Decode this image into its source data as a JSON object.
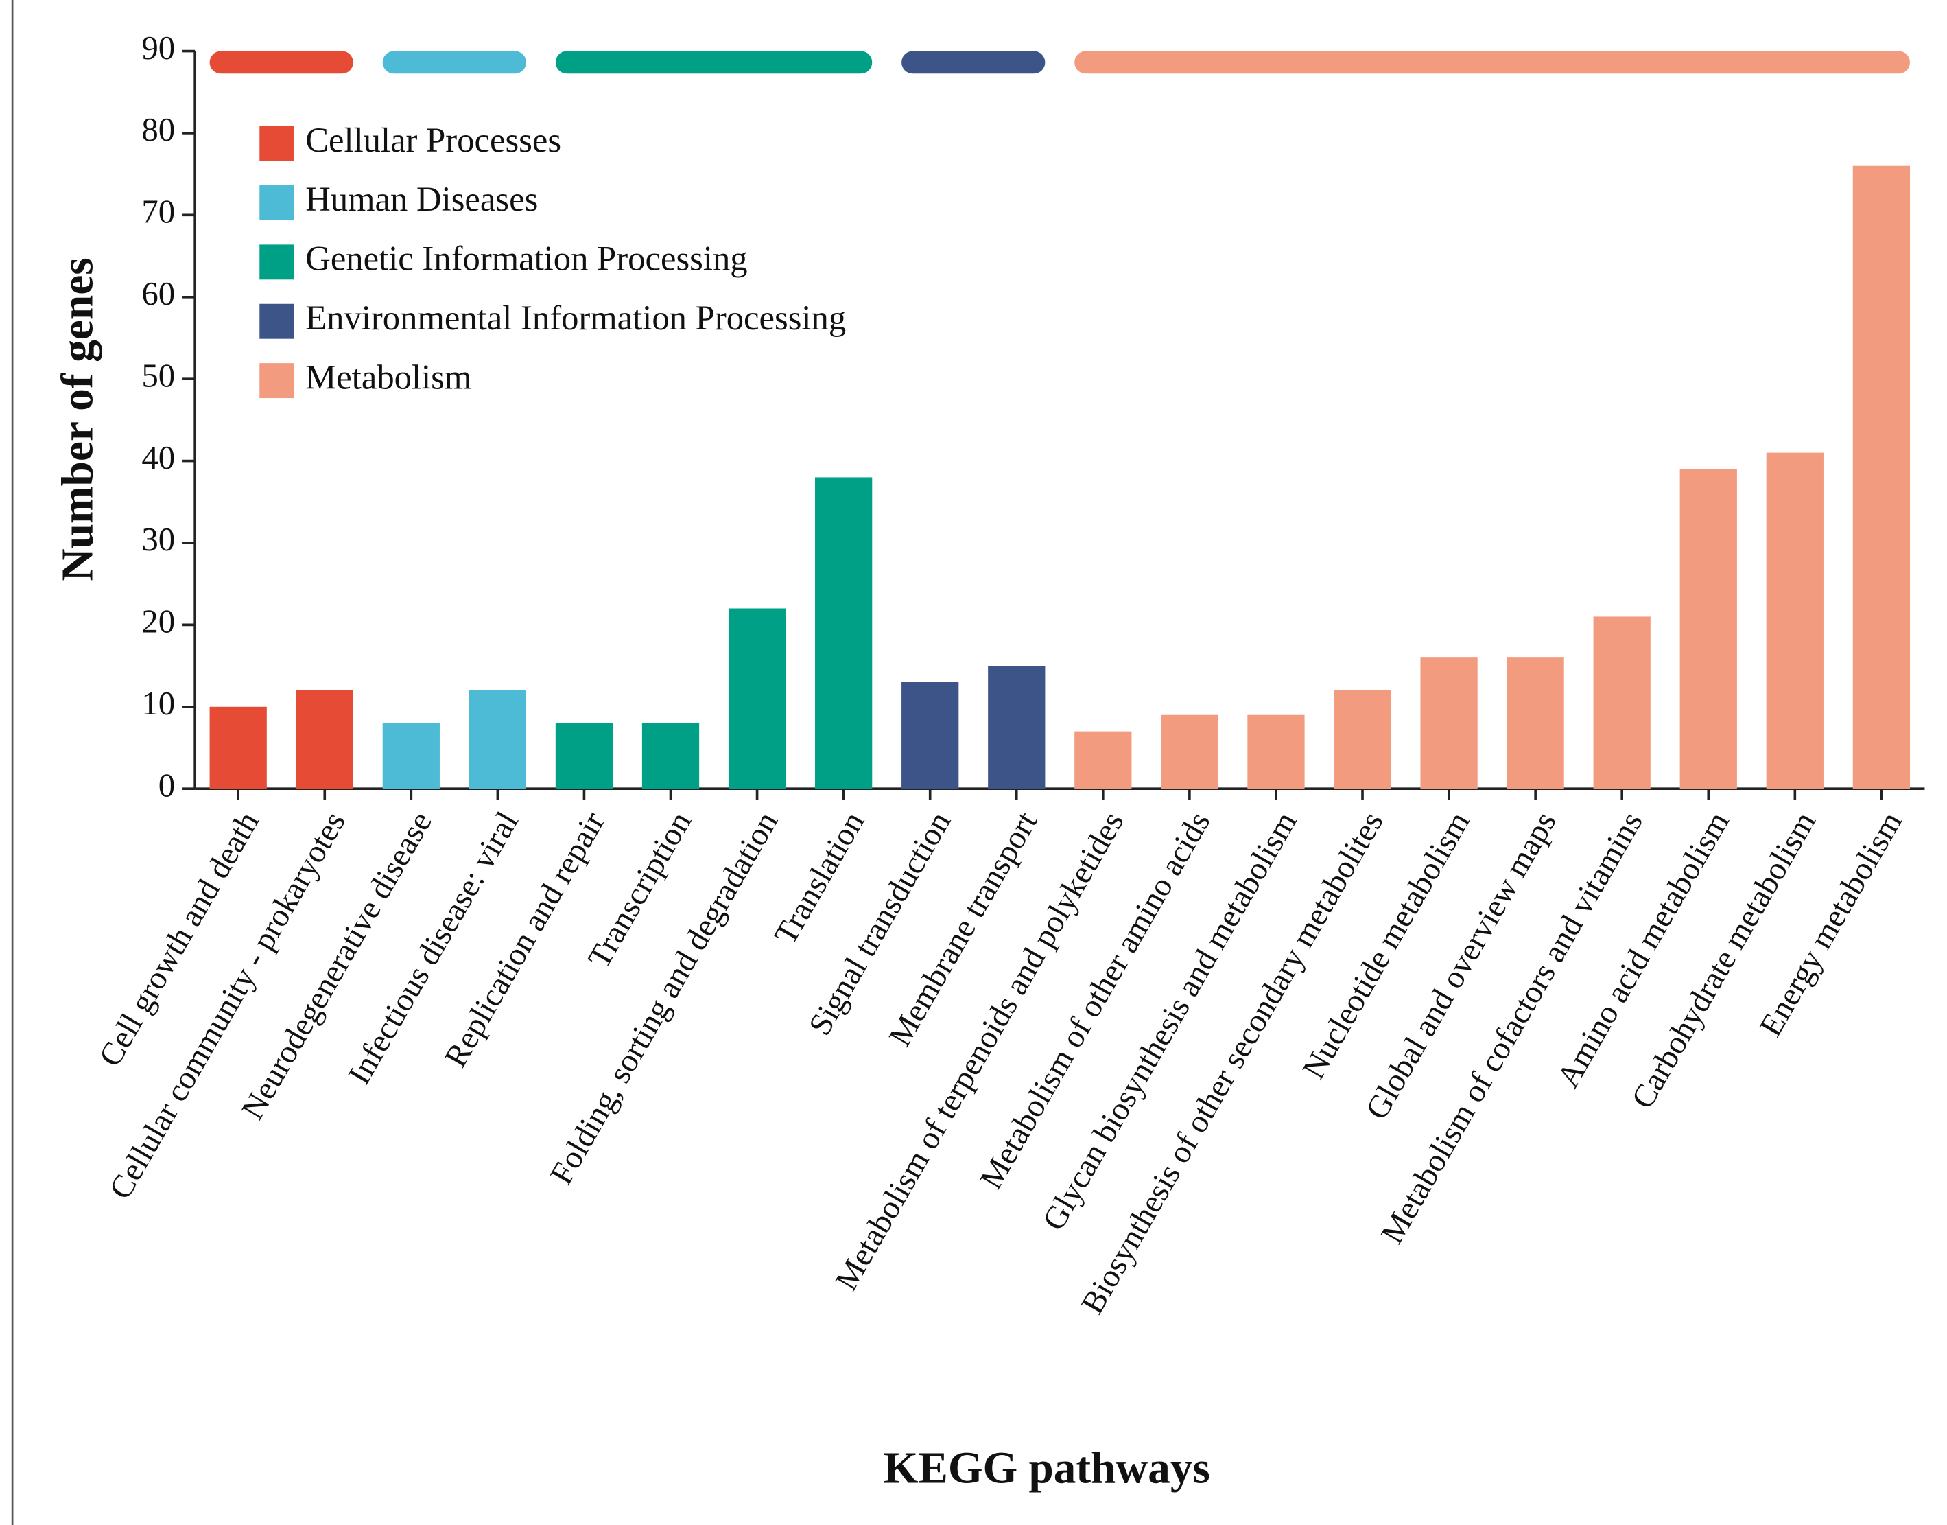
{
  "chart_data": {
    "type": "bar",
    "x_label": "KEGG pathways",
    "y_label": "Number of genes",
    "categories": [
      "Cell growth and death",
      "Cellular community - prokaryotes",
      "Neurodegenerative disease",
      "Infectious disease: viral",
      "Replication and repair",
      "Transcription",
      "Folding, sorting and degradation",
      "Translation",
      "Signal transduction",
      "Membrane transport",
      "Metabolism of terpenoids and polyketides",
      "Metabolism of other amino acids",
      "Glycan biosynthesis and metabolism",
      "Biosynthesis of other secondary metabolites",
      "Nucleotide metabolism",
      "Global and overview maps",
      "Metabolism of cofactors and vitamins",
      "Amino acid metabolism",
      "Carbohydrate metabolism",
      "Energy metabolism"
    ],
    "series": [
      {
        "name": "Cellular Processes",
        "color": "#e64b35",
        "values": [
          10,
          12,
          null,
          null,
          null,
          null,
          null,
          null,
          null,
          null,
          null,
          null,
          null,
          null,
          null,
          null,
          null,
          null,
          null,
          null
        ]
      },
      {
        "name": "Human Diseases",
        "color": "#4dbbd5",
        "values": [
          null,
          null,
          8,
          12,
          null,
          null,
          null,
          null,
          null,
          null,
          null,
          null,
          null,
          null,
          null,
          null,
          null,
          null,
          null,
          null
        ]
      },
      {
        "name": "Genetic Information Processing",
        "color": "#00a087",
        "values": [
          null,
          null,
          null,
          null,
          8,
          8,
          22,
          38,
          null,
          null,
          null,
          null,
          null,
          null,
          null,
          null,
          null,
          null,
          null,
          null
        ]
      },
      {
        "name": "Environmental Information Processing",
        "color": "#3c5488",
        "values": [
          null,
          null,
          null,
          null,
          null,
          null,
          null,
          null,
          13,
          15,
          null,
          null,
          null,
          null,
          null,
          null,
          null,
          null,
          null,
          null
        ]
      },
      {
        "name": "Metabolism",
        "color": "#f39b7f",
        "values": [
          null,
          null,
          null,
          null,
          null,
          null,
          null,
          null,
          null,
          null,
          7,
          9,
          9,
          12,
          16,
          16,
          21,
          39,
          41,
          76
        ]
      }
    ],
    "ylim": [
      0,
      90
    ],
    "yticks": [
      0,
      10,
      20,
      30,
      40,
      50,
      60,
      70,
      80,
      90
    ]
  }
}
